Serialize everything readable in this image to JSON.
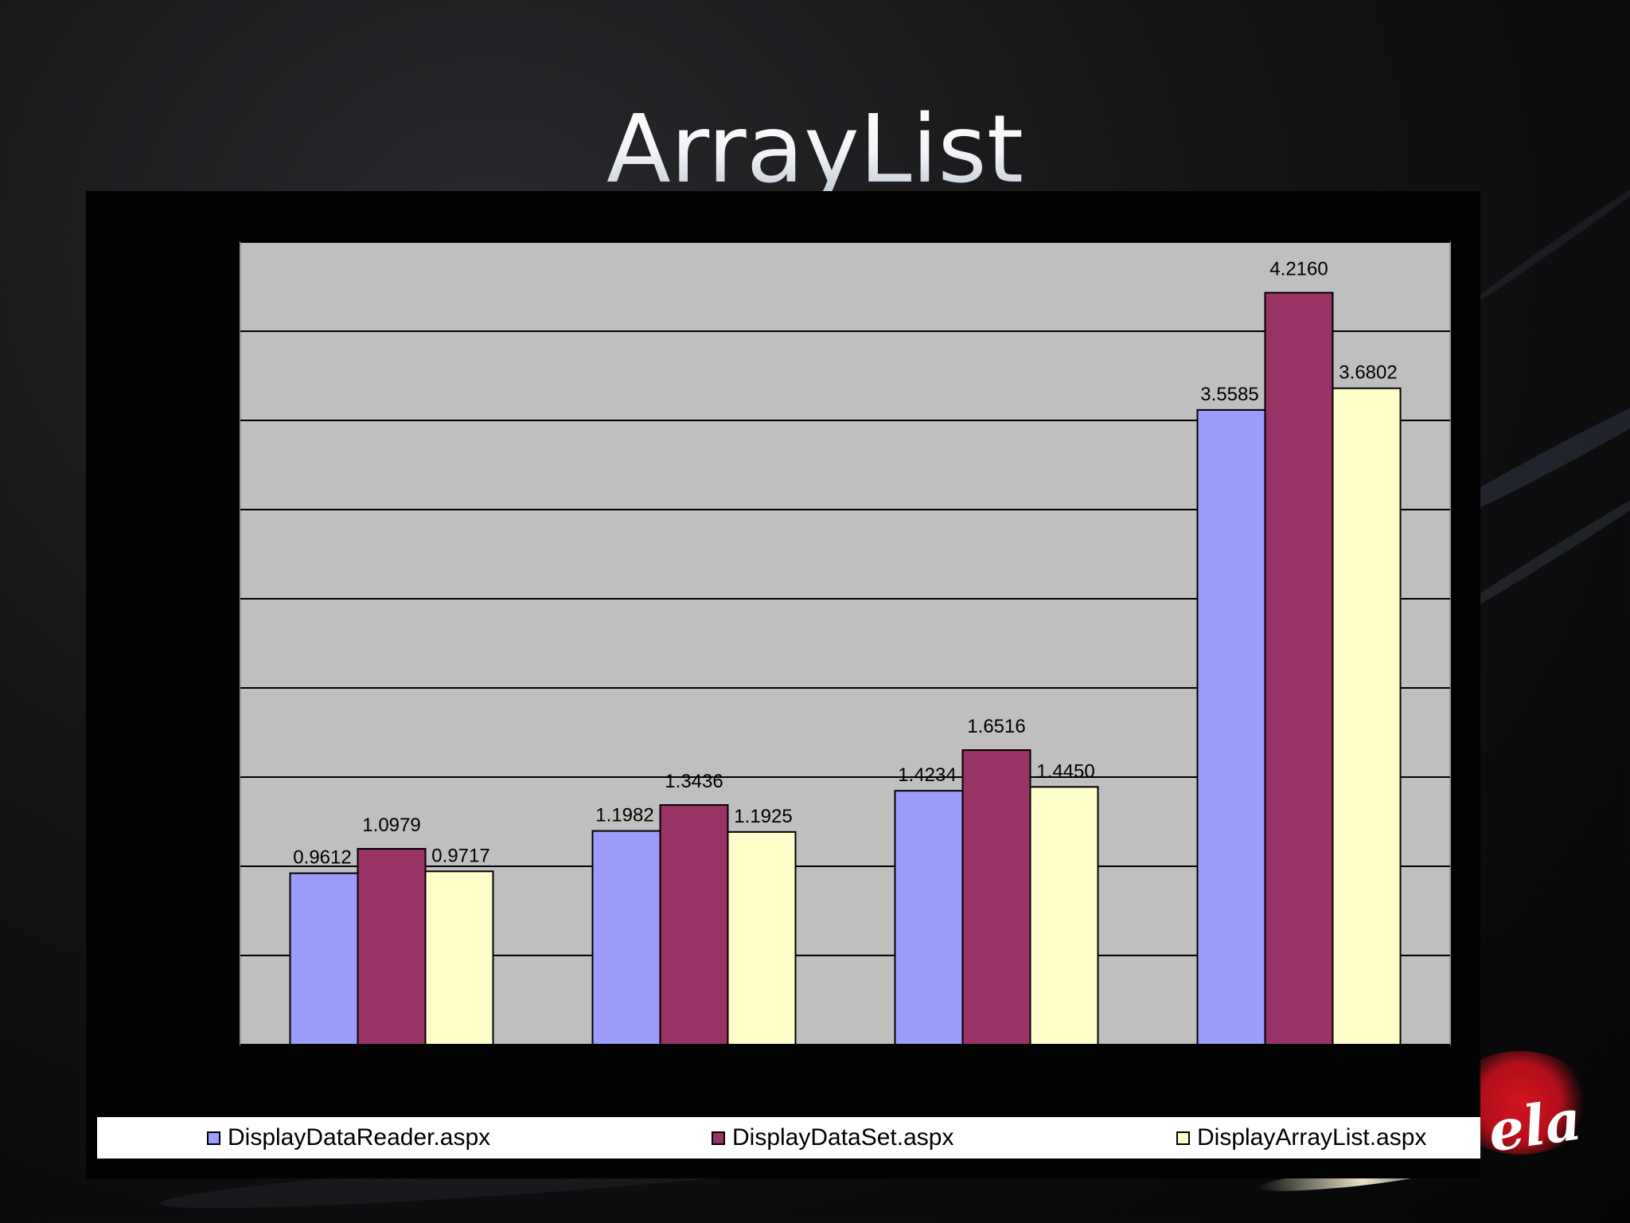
{
  "slide": {
    "title": "ArrayList",
    "logo_text": "ela"
  },
  "chart_data": {
    "type": "bar",
    "categories": [
      "",
      "",
      "",
      ""
    ],
    "series": [
      {
        "name": "DisplayDataReader.aspx",
        "color": "#9c9cfb",
        "values": [
          0.9612,
          1.1982,
          1.4234,
          3.5585
        ],
        "labels": [
          "0.9612",
          "1.1982",
          "1.4234",
          "3.5585"
        ]
      },
      {
        "name": "DisplayDataSet.aspx",
        "color": "#993366",
        "values": [
          1.0979,
          1.3436,
          1.6516,
          4.216
        ],
        "labels": [
          "1.0979",
          "1.3436",
          "1.6516",
          "4.2160"
        ]
      },
      {
        "name": "DisplayArrayList.aspx",
        "color": "#ffffcc",
        "values": [
          0.9717,
          1.1925,
          1.445,
          3.6802
        ],
        "labels": [
          "0.9717",
          "1.1925",
          "1.4450",
          "3.6802"
        ]
      }
    ],
    "ylim": [
      0,
      4.5
    ],
    "ytick_step": 0.5,
    "grid": true,
    "plot_background": "#c0bfc0",
    "legend_position": "bottom",
    "title": "",
    "xlabel": "",
    "ylabel": ""
  }
}
